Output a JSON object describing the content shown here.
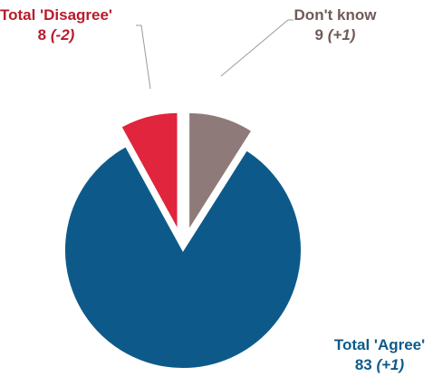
{
  "chart_data": {
    "type": "pie",
    "title": "",
    "slices": [
      {
        "label": "Total 'Disagree'",
        "value": 8,
        "change": "(-2)",
        "color": "#e0253c",
        "text_color": "#b71c2c",
        "exploded": true
      },
      {
        "label": "Don't know",
        "value": 9,
        "change": "(+1)",
        "color": "#8e7b79",
        "text_color": "#6f5b58",
        "exploded": true
      },
      {
        "label": "Total 'Agree'",
        "value": 83,
        "change": "(+1)",
        "color": "#0d5a8a",
        "text_color": "#0d5a8a",
        "exploded": false
      }
    ]
  }
}
